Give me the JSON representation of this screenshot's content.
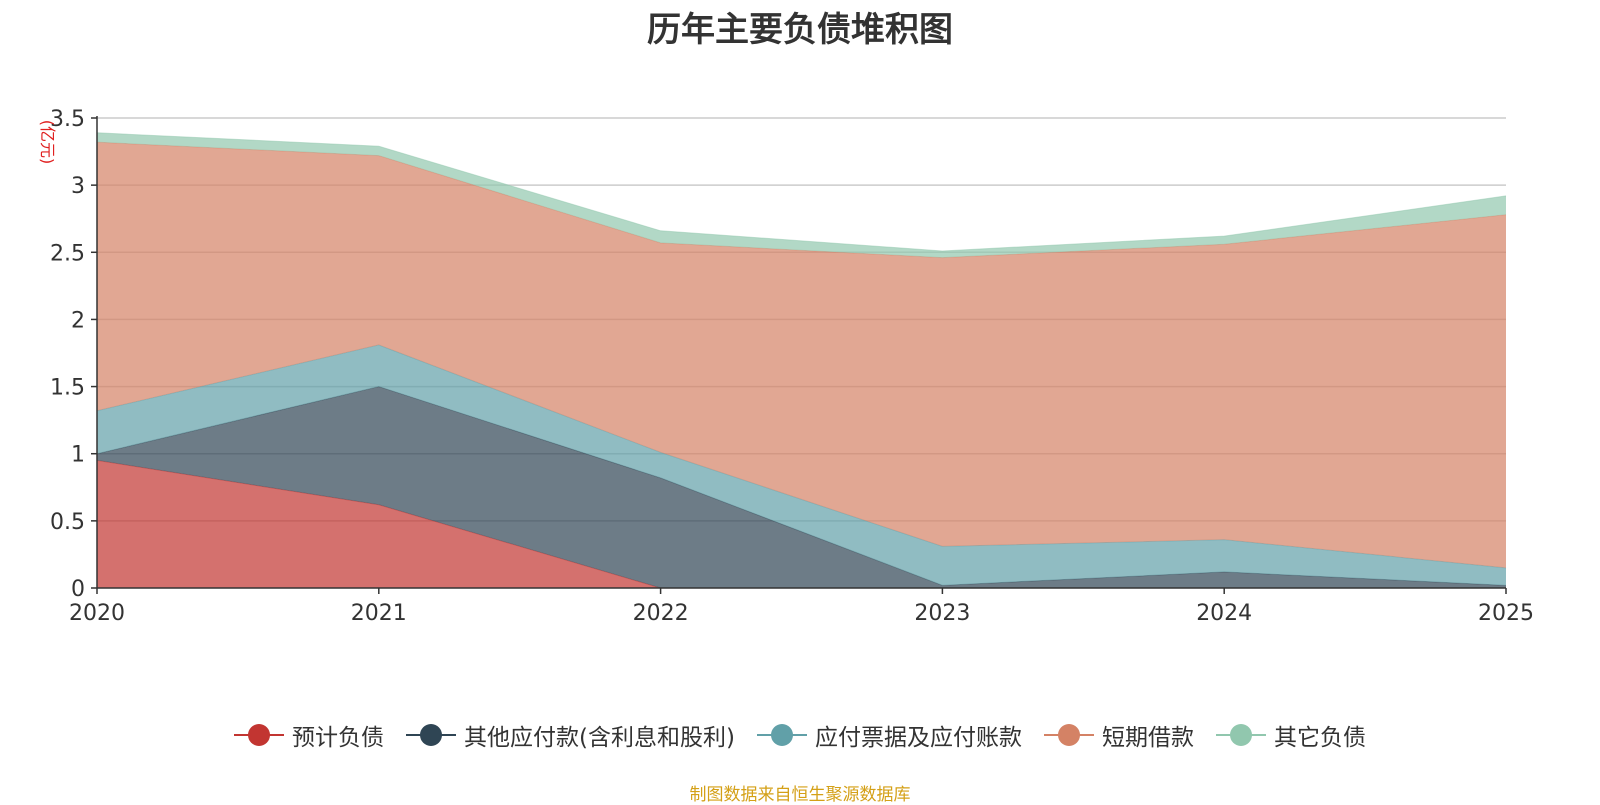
{
  "chart_data": {
    "type": "area",
    "stacked": true,
    "title": "历年主要负债堆积图",
    "unit_label": "(亿元)",
    "categories": [
      "2020",
      "2021",
      "2022",
      "2023",
      "2024",
      "2025"
    ],
    "ylim": [
      0,
      3.5
    ],
    "yticks": [
      "0",
      "0.5",
      "1",
      "1.5",
      "2",
      "2.5",
      "3",
      "3.5"
    ],
    "ytick_values": [
      0,
      0.5,
      1,
      1.5,
      2,
      2.5,
      3,
      3.5
    ],
    "grid": true,
    "legend_position": "bottom",
    "series": [
      {
        "name": "预计负债",
        "color": "#c23531",
        "values": [
          0.95,
          0.62,
          0.0,
          0.0,
          0.0,
          0.0
        ]
      },
      {
        "name": "其他应付款(含利息和股利)",
        "color": "#2f4554",
        "values": [
          0.05,
          0.88,
          0.82,
          0.02,
          0.12,
          0.02
        ]
      },
      {
        "name": "应付票据及应付账款",
        "color": "#61a0a8",
        "values": [
          0.32,
          0.31,
          0.19,
          0.29,
          0.24,
          0.13
        ]
      },
      {
        "name": "短期借款",
        "color": "#d48265",
        "values": [
          2.0,
          1.41,
          1.56,
          2.15,
          2.2,
          2.63
        ]
      },
      {
        "name": "其它负债",
        "color": "#91c7ae",
        "values": [
          0.07,
          0.07,
          0.09,
          0.05,
          0.06,
          0.14
        ]
      }
    ],
    "source": "制图数据来自恒生聚源数据库"
  }
}
